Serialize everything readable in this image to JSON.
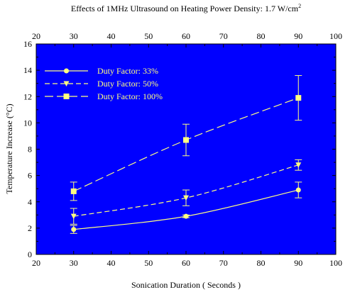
{
  "chart_data": {
    "type": "line",
    "title": "Effects of 1MHz Ultrasound on Heating Power Density: 1.7 W/cm",
    "title_superscript": "2",
    "xlabel": "Sonication Duration ( Seconds )",
    "ylabel": "Temperature Increase (°C)",
    "xlim": [
      20,
      100
    ],
    "ylim": [
      0,
      16
    ],
    "x_ticks": [
      20,
      30,
      40,
      50,
      60,
      70,
      80,
      90,
      100
    ],
    "y_ticks": [
      0,
      2,
      4,
      6,
      8,
      10,
      12,
      14,
      16
    ],
    "x_tick_labels": [
      "20",
      "30",
      "40",
      "50",
      "60",
      "70",
      "80",
      "90",
      "100"
    ],
    "y_tick_labels": [
      "0",
      "2",
      "4",
      "6",
      "8",
      "10",
      "12",
      "14",
      "16"
    ],
    "top_axis_mirrored": true,
    "grid": false,
    "legend_position": "top-left",
    "x": [
      30,
      60,
      90
    ],
    "series": [
      {
        "name": "Duty Factor: 33%",
        "marker": "circle",
        "line_style": "solid",
        "values": [
          1.9,
          2.9,
          4.9
        ],
        "errors": [
          0.3,
          0.1,
          0.6
        ]
      },
      {
        "name": "Duty Factor: 50%",
        "marker": "triangle-down",
        "line_style": "dashed",
        "values": [
          2.9,
          4.3,
          6.8
        ],
        "errors": [
          0.6,
          0.6,
          0.4
        ]
      },
      {
        "name": "Duty Factor: 100%",
        "marker": "square",
        "line_style": "long-dashed",
        "values": [
          4.8,
          8.7,
          11.9
        ],
        "errors": [
          0.7,
          1.2,
          1.7
        ]
      }
    ],
    "colors": {
      "plot_background": "#0000ff",
      "series": "#ffff80",
      "frame": "#000000"
    }
  }
}
